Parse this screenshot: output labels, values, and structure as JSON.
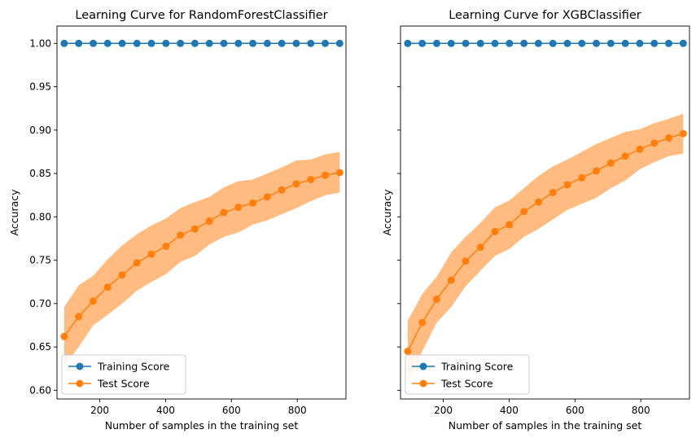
{
  "chart_data": [
    {
      "type": "line",
      "title": "Learning Curve for RandomForestClassifier",
      "xlabel": "Number of samples in the training set",
      "ylabel": "Accuracy",
      "xlim": [
        70,
        948
      ],
      "ylim": [
        0.59,
        1.02
      ],
      "xticks": [
        200,
        400,
        600,
        800
      ],
      "yticks": [
        0.6,
        0.65,
        0.7,
        0.75,
        0.8,
        0.85,
        0.9,
        0.95,
        1.0
      ],
      "legend_position": "lower-left",
      "grid": false,
      "x": [
        92,
        136,
        180,
        224,
        268,
        313,
        357,
        401,
        445,
        489,
        533,
        577,
        621,
        665,
        709,
        753,
        797,
        841,
        885,
        929
      ],
      "series": [
        {
          "name": "Training Score",
          "color": "#1f77b4",
          "values": [
            1.0,
            1.0,
            1.0,
            1.0,
            1.0,
            1.0,
            1.0,
            1.0,
            1.0,
            1.0,
            1.0,
            1.0,
            1.0,
            1.0,
            1.0,
            1.0,
            1.0,
            1.0,
            1.0,
            1.0
          ]
        },
        {
          "name": "Test Score",
          "color": "#ff7f0e",
          "band_color": "#ffbb80",
          "values": [
            0.662,
            0.685,
            0.703,
            0.719,
            0.733,
            0.747,
            0.757,
            0.766,
            0.779,
            0.786,
            0.795,
            0.805,
            0.811,
            0.816,
            0.823,
            0.831,
            0.838,
            0.843,
            0.848,
            0.851
          ],
          "lower": [
            0.628,
            0.65,
            0.675,
            0.687,
            0.7,
            0.715,
            0.725,
            0.734,
            0.748,
            0.755,
            0.768,
            0.777,
            0.782,
            0.791,
            0.796,
            0.803,
            0.81,
            0.818,
            0.825,
            0.828
          ],
          "upper": [
            0.696,
            0.721,
            0.732,
            0.751,
            0.767,
            0.78,
            0.79,
            0.798,
            0.81,
            0.817,
            0.823,
            0.834,
            0.841,
            0.843,
            0.85,
            0.857,
            0.865,
            0.866,
            0.872,
            0.875
          ]
        }
      ]
    },
    {
      "type": "line",
      "title": "Learning Curve for XGBClassifier",
      "xlabel": "Number of samples in the training set",
      "ylabel": "Accuracy",
      "xlim": [
        70,
        948
      ],
      "ylim": [
        0.59,
        1.02
      ],
      "xticks": [
        200,
        400,
        600,
        800
      ],
      "yticks": [
        0.6,
        0.65,
        0.7,
        0.75,
        0.8,
        0.85,
        0.9,
        0.95,
        1.0
      ],
      "legend_position": "lower-left",
      "grid": false,
      "x": [
        92,
        136,
        180,
        224,
        268,
        313,
        357,
        401,
        445,
        489,
        533,
        577,
        621,
        665,
        709,
        753,
        797,
        841,
        885,
        929
      ],
      "series": [
        {
          "name": "Training Score",
          "color": "#1f77b4",
          "values": [
            1.0,
            1.0,
            1.0,
            1.0,
            1.0,
            1.0,
            1.0,
            1.0,
            1.0,
            1.0,
            1.0,
            1.0,
            1.0,
            1.0,
            1.0,
            1.0,
            1.0,
            1.0,
            1.0,
            1.0
          ]
        },
        {
          "name": "Test Score",
          "color": "#ff7f0e",
          "band_color": "#ffbb80",
          "values": [
            0.645,
            0.678,
            0.705,
            0.727,
            0.749,
            0.765,
            0.783,
            0.791,
            0.806,
            0.817,
            0.828,
            0.837,
            0.845,
            0.853,
            0.862,
            0.87,
            0.878,
            0.885,
            0.891,
            0.896
          ],
          "lower": [
            0.61,
            0.645,
            0.678,
            0.696,
            0.72,
            0.738,
            0.755,
            0.763,
            0.777,
            0.786,
            0.797,
            0.808,
            0.815,
            0.822,
            0.833,
            0.842,
            0.855,
            0.863,
            0.87,
            0.873
          ],
          "upper": [
            0.68,
            0.711,
            0.731,
            0.759,
            0.777,
            0.793,
            0.811,
            0.819,
            0.833,
            0.847,
            0.858,
            0.866,
            0.875,
            0.884,
            0.891,
            0.898,
            0.901,
            0.908,
            0.913,
            0.919
          ]
        }
      ]
    }
  ]
}
